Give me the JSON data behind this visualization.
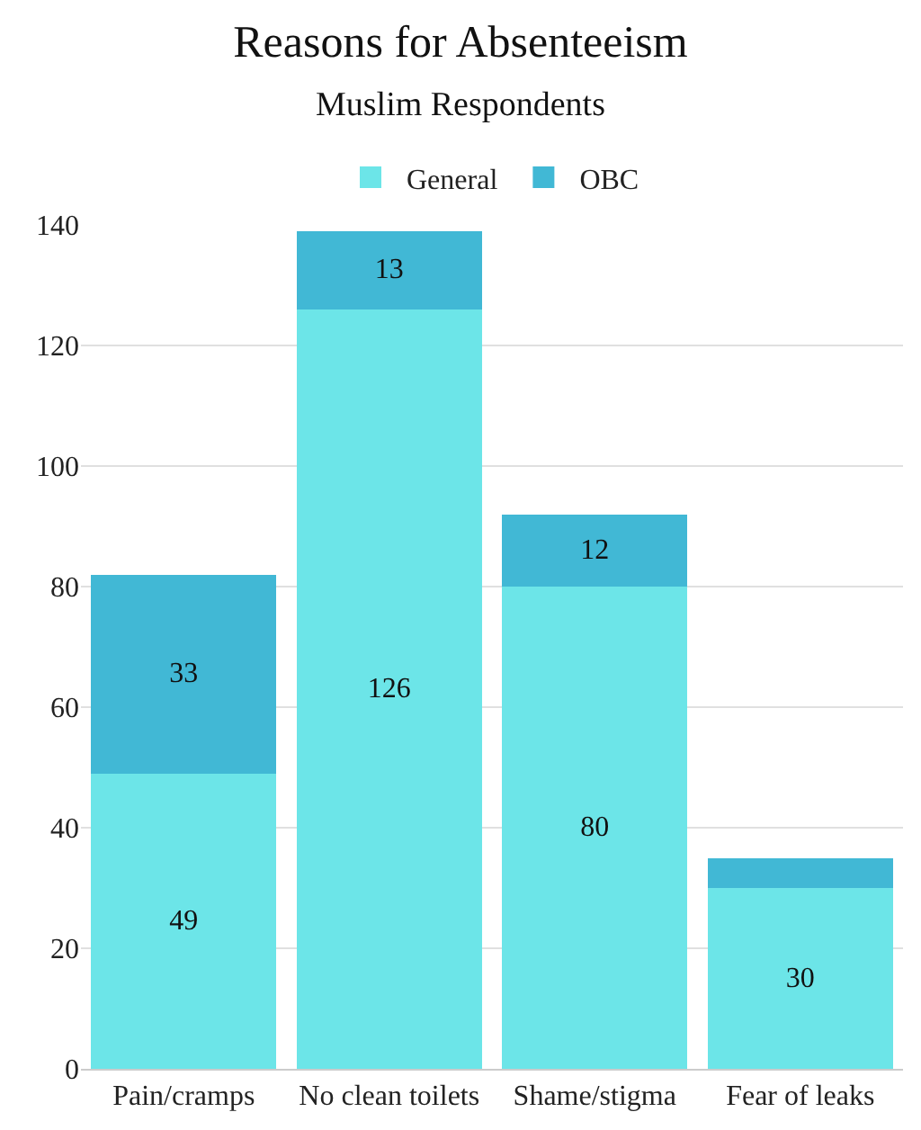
{
  "chart_data": {
    "type": "bar",
    "stacked": true,
    "title": "Reasons for Absenteeism",
    "subtitle": "Muslim Respondents",
    "categories": [
      "Pain/cramps",
      "No clean toilets",
      "Shame/stigma",
      "Fear of leaks"
    ],
    "series": [
      {
        "name": "General",
        "color": "#6ce5e8",
        "values": [
          49,
          126,
          80,
          30
        ],
        "value_labels": [
          "49",
          "126",
          "80",
          "30"
        ]
      },
      {
        "name": "OBC",
        "color": "#41b8d5",
        "values": [
          33,
          13,
          12,
          5
        ],
        "value_labels": [
          "33",
          "13",
          "12",
          null
        ]
      }
    ],
    "ylim": [
      0,
      140
    ],
    "yticks": [
      0,
      20,
      40,
      60,
      80,
      100,
      120,
      140
    ],
    "grid": "y",
    "legend": "top"
  }
}
